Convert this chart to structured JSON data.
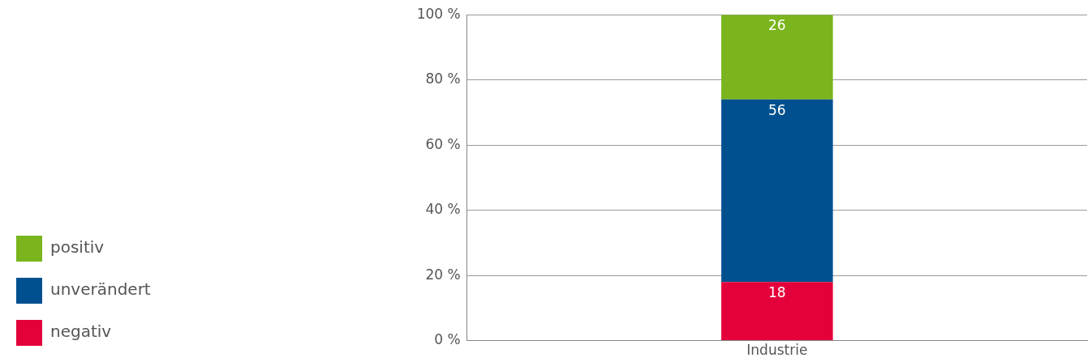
{
  "chart_data": {
    "type": "bar",
    "stacked": true,
    "categories": [
      "Industrie"
    ],
    "series": [
      {
        "name": "negativ",
        "color": "#e4003a",
        "values": [
          18
        ]
      },
      {
        "name": "unverändert",
        "color": "#00508f",
        "values": [
          56
        ]
      },
      {
        "name": "positiv",
        "color": "#7ab51d",
        "values": [
          26
        ]
      }
    ],
    "ylim": [
      0,
      100
    ],
    "yticks": [
      {
        "value": 0,
        "label": "0 %"
      },
      {
        "value": 20,
        "label": "20 %"
      },
      {
        "value": 40,
        "label": "40 %"
      },
      {
        "value": 60,
        "label": "60 %"
      },
      {
        "value": 80,
        "label": "80 %"
      },
      {
        "value": 100,
        "label": "100 %"
      }
    ],
    "grid": "y",
    "legend": "left",
    "data_labels": true
  }
}
